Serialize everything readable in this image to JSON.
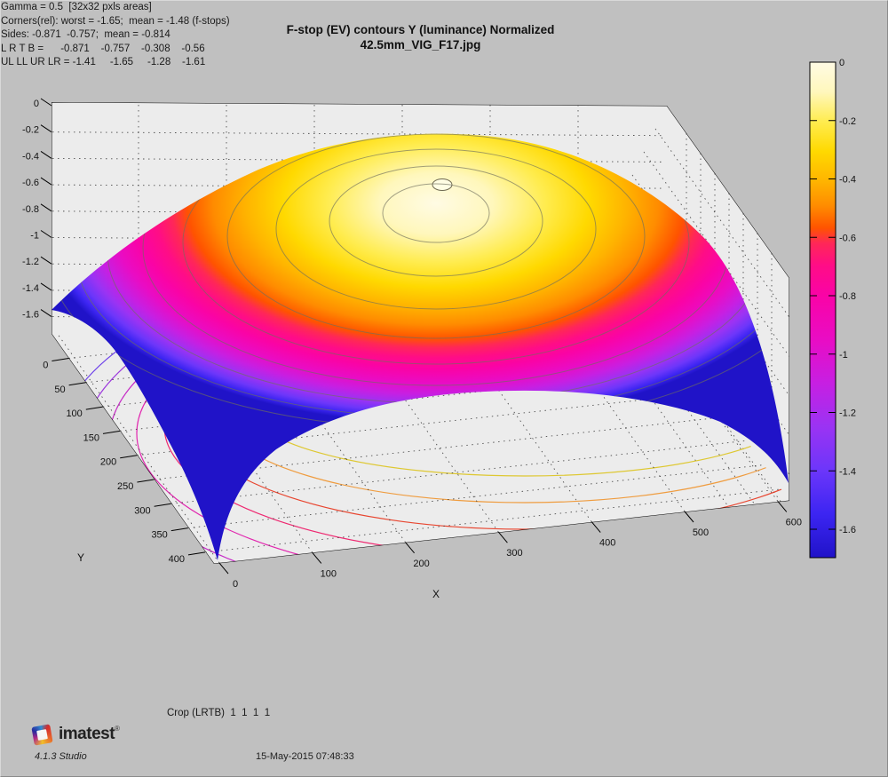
{
  "window": {
    "background": "#c0c0c0",
    "wall_color": "#ececec"
  },
  "title": {
    "line1": "F-stop (EV) contours   Y (luminance)  Normalized",
    "line2": "42.5mm_VIG_F17.jpg"
  },
  "axes": {
    "x_label": "X",
    "y_label": "Y"
  },
  "annotations": {
    "gamma": "Gamma = 0.5  [32x32 pxls areas]",
    "corners": "Corners(rel): worst = -1.65;  mean = -1.48 (f-stops)",
    "sides": "Sides: -0.871  -0.757;  mean = -0.814",
    "lrtb": "L R T B =      -0.871    -0.757    -0.308    -0.56",
    "corner_values": "UL LL UR LR = -1.41     -1.65     -1.28    -1.61",
    "crop": "Crop (LRTB)  1  1  1  1"
  },
  "footer": {
    "logo_text": "imatest",
    "logo_reg": "®",
    "version": "4.1.3  Studio",
    "timestamp": "15-May-2015 07:48:33"
  },
  "chart_data": {
    "type": "surface",
    "title": "F-stop (EV) contours   Y (luminance)  Normalized",
    "subtitle": "42.5mm_VIG_F17.jpg",
    "xlabel": "X",
    "ylabel": "Y",
    "x_ticks": [
      0,
      100,
      200,
      300,
      400,
      500,
      600
    ],
    "y_ticks": [
      0,
      50,
      100,
      150,
      200,
      250,
      300,
      350,
      400
    ],
    "z_ticks": [
      0,
      -0.2,
      -0.4,
      -0.6,
      -0.8,
      -1,
      -1.2,
      -1.4,
      -1.6
    ],
    "colorbar_ticks": [
      0,
      -0.2,
      -0.4,
      -0.6,
      -0.8,
      -1,
      -1.2,
      -1.4,
      -1.6
    ],
    "xlim": [
      0,
      600
    ],
    "ylim": [
      0,
      400
    ],
    "zlim": [
      -1.7,
      0
    ],
    "z_units": "f-stops (EV)",
    "surface_shape": "dome peaking at 0 EV in image center, falling to corners",
    "peak_value": 0,
    "gamma": 0.5,
    "sample_region": "32x32 pxls areas",
    "corners_rel": {
      "worst": -1.65,
      "mean": -1.48
    },
    "sides": {
      "left": -0.871,
      "right": -0.757,
      "mean": -0.814
    },
    "lrtb": {
      "L": -0.871,
      "R": -0.757,
      "T": -0.308,
      "B": -0.56
    },
    "corner_values": {
      "UL": -1.41,
      "LL": -1.65,
      "UR": -1.28,
      "LR": -1.61
    },
    "crop_lrtb": [
      1,
      1,
      1,
      1
    ],
    "contour_step": 0.1,
    "grid": true,
    "legend_position": "right-colorbar",
    "colormap": [
      [
        0.0,
        "#fffbe4"
      ],
      [
        0.06,
        "#fff7bc"
      ],
      [
        0.12,
        "#ffec4f"
      ],
      [
        0.18,
        "#ffd900"
      ],
      [
        0.24,
        "#ffb400"
      ],
      [
        0.29,
        "#ff8c00"
      ],
      [
        0.335,
        "#ff5300"
      ],
      [
        0.365,
        "#ff2757"
      ],
      [
        0.41,
        "#ff0d86"
      ],
      [
        0.47,
        "#fa03a6"
      ],
      [
        0.56,
        "#e90cc4"
      ],
      [
        0.647,
        "#c71fe2"
      ],
      [
        0.735,
        "#9b33f3"
      ],
      [
        0.824,
        "#6c36fa"
      ],
      [
        0.912,
        "#3c25f2"
      ],
      [
        1.0,
        "#2013c8"
      ]
    ]
  }
}
